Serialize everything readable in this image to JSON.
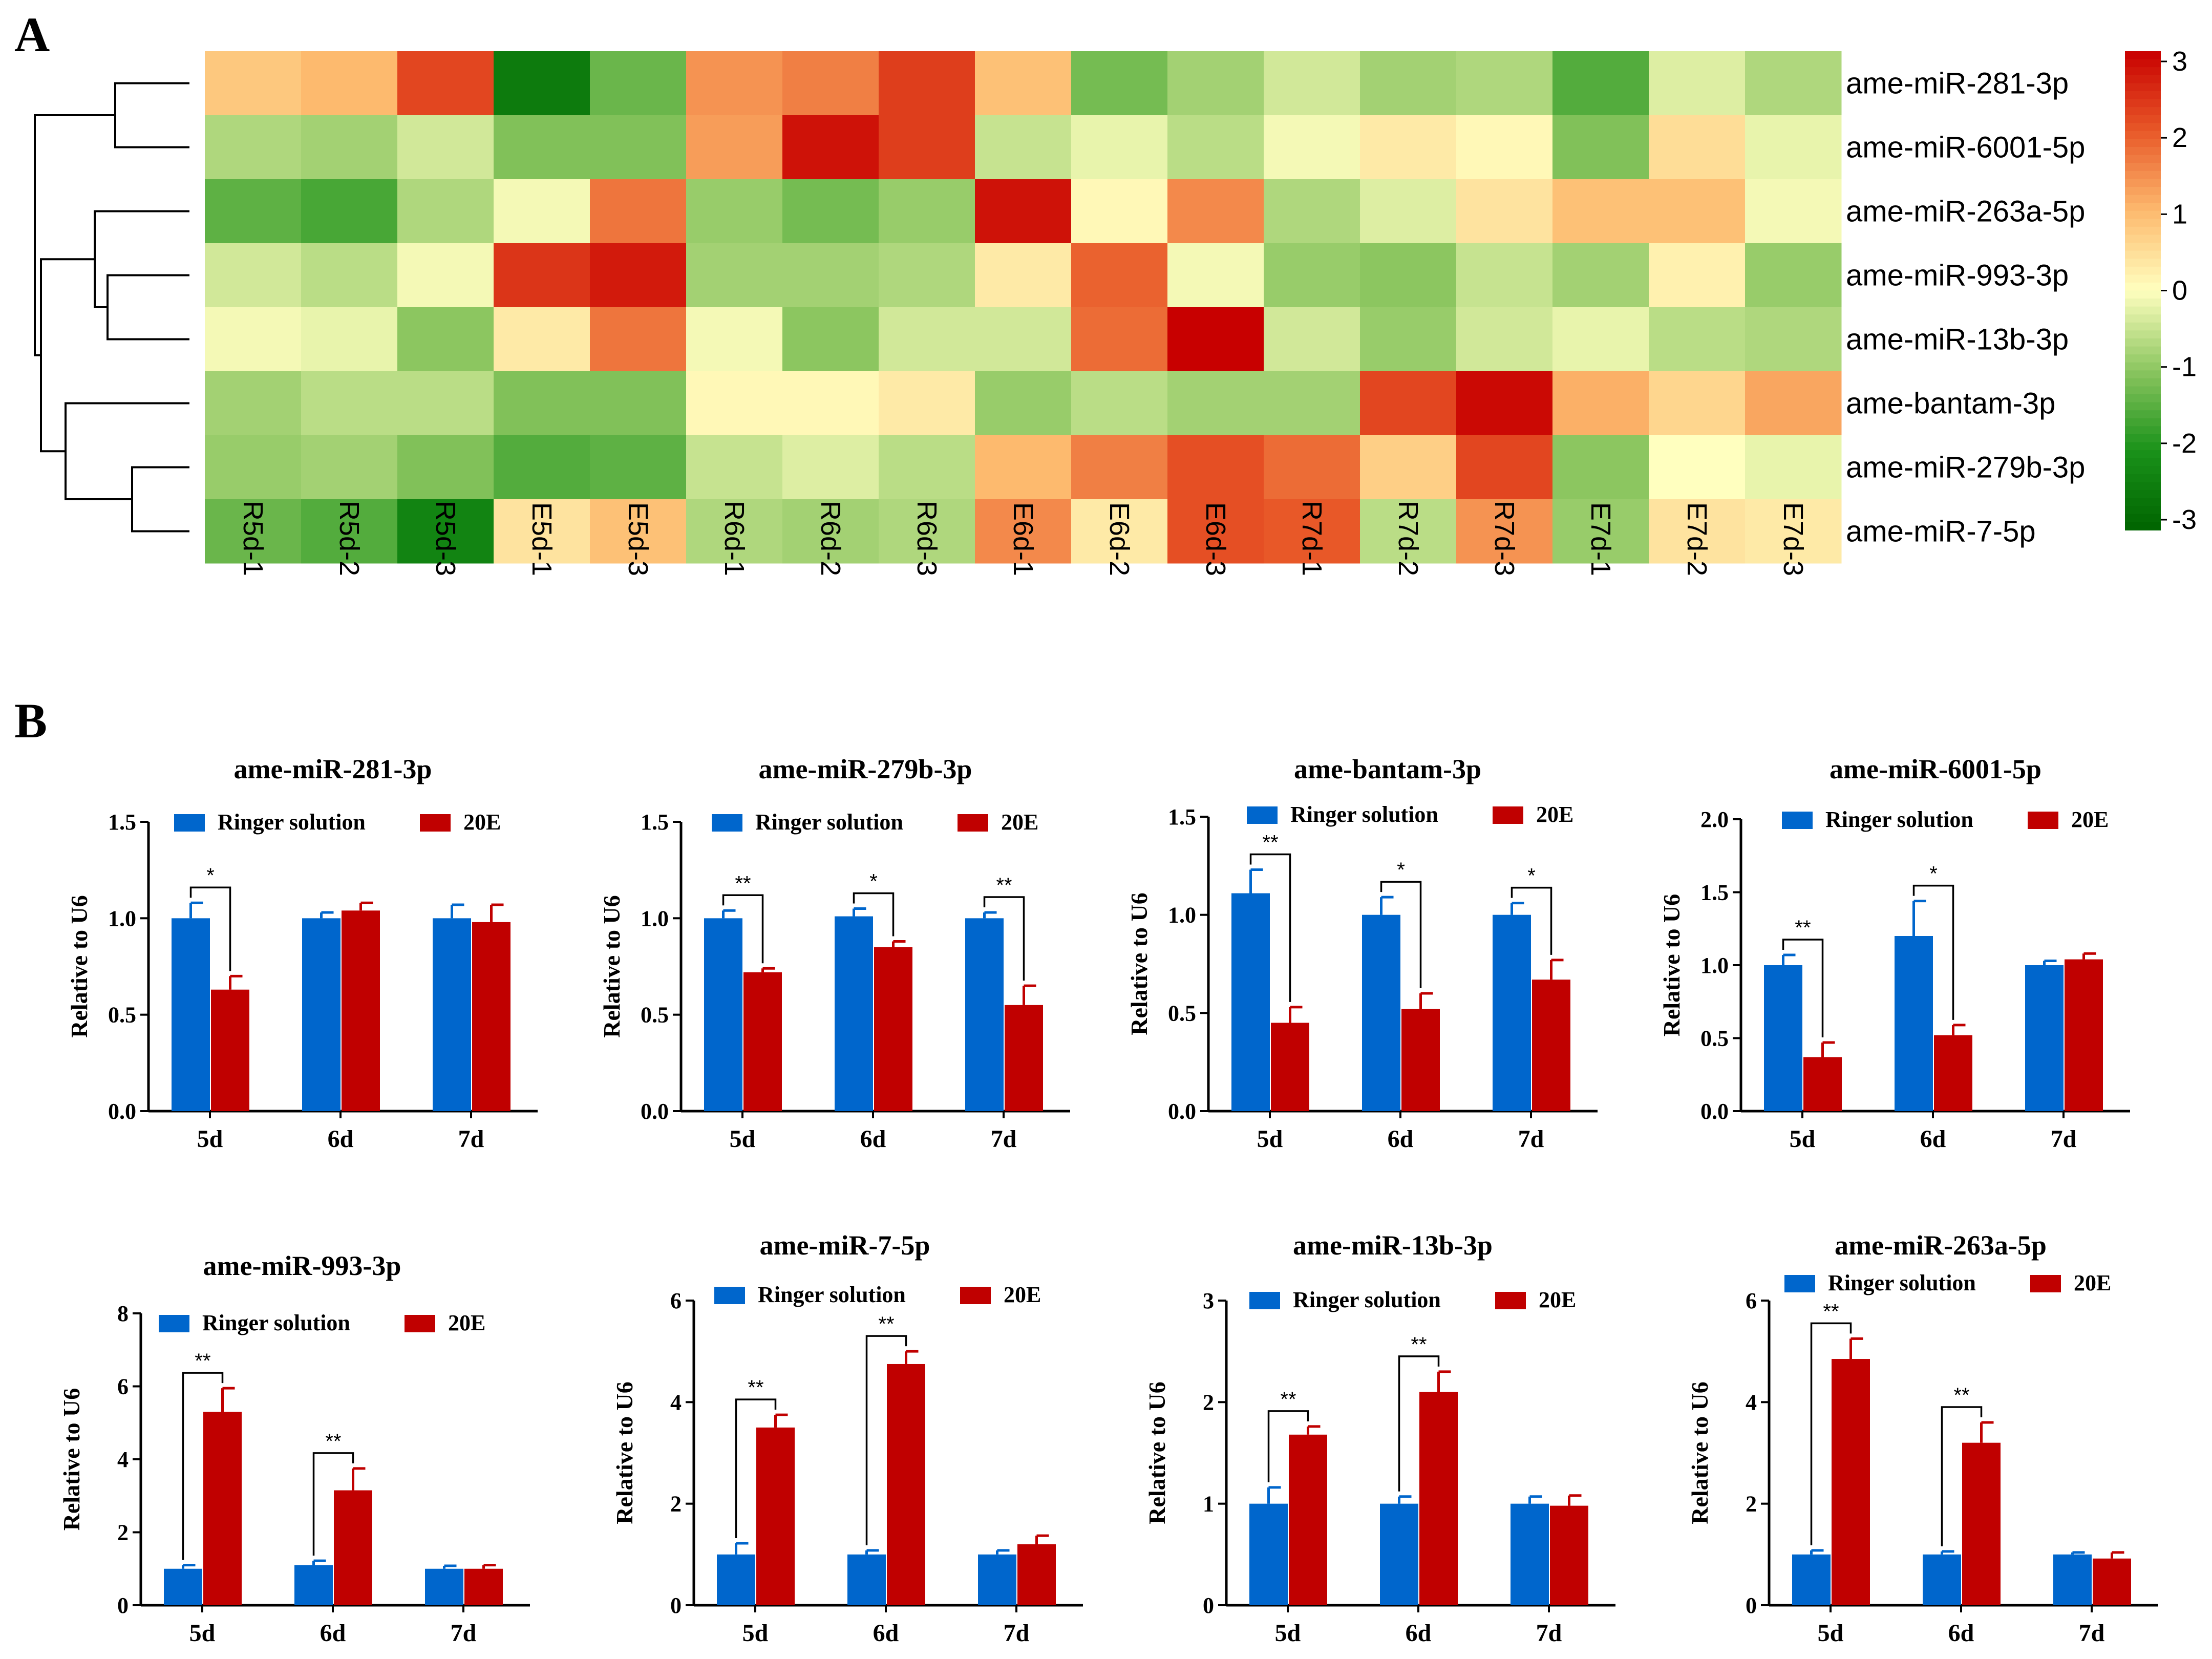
{
  "chart_data": [
    {
      "type": "heatmap",
      "panel": "A",
      "rows": [
        "ame-miR-281-3p",
        "ame-miR-6001-5p",
        "ame-miR-263a-5p",
        "ame-miR-993-3p",
        "ame-miR-13b-3p",
        "ame-bantam-3p",
        "ame-miR-279b-3p",
        "ame-miR-7-5p"
      ],
      "columns": [
        "R5d-1",
        "R5d-2",
        "R5d-3",
        "E5d-1",
        "E5d-3",
        "R6d-1",
        "R6d-2",
        "R6d-3",
        "E6d-1",
        "E6d-2",
        "E6d-3",
        "R7d-1",
        "R7d-2",
        "R7d-3",
        "E7d-1",
        "E7d-2",
        "E7d-3"
      ],
      "values": [
        [
          0.8,
          1.0,
          2.2,
          -2.5,
          -1.3,
          1.4,
          1.6,
          2.3,
          0.9,
          -1.2,
          -0.8,
          -0.4,
          -0.8,
          -0.7,
          -1.5,
          -0.3,
          -0.7
        ],
        [
          -0.7,
          -0.8,
          -0.4,
          -1.1,
          -1.1,
          1.3,
          2.8,
          2.3,
          -0.5,
          -0.2,
          -0.6,
          -0.1,
          0.3,
          0.1,
          -1.1,
          0.5,
          -0.2
        ],
        [
          -1.4,
          -1.6,
          -0.7,
          -0.1,
          1.7,
          -0.9,
          -1.2,
          -0.9,
          2.8,
          0.1,
          1.5,
          -0.7,
          -0.3,
          0.4,
          0.9,
          0.9,
          -0.1
        ],
        [
          -0.4,
          -0.6,
          -0.1,
          2.4,
          2.7,
          -0.8,
          -0.8,
          -0.7,
          0.3,
          1.9,
          -0.1,
          -0.9,
          -1.0,
          -0.5,
          -0.8,
          0.2,
          -0.9
        ],
        [
          -0.1,
          -0.2,
          -1.0,
          0.3,
          1.7,
          -0.1,
          -1.0,
          -0.4,
          -0.4,
          1.8,
          3.0,
          -0.4,
          -0.9,
          -0.4,
          -0.2,
          -0.6,
          -0.7
        ],
        [
          -0.8,
          -0.6,
          -0.6,
          -1.1,
          -1.1,
          0.1,
          0.1,
          0.3,
          -0.9,
          -0.6,
          -0.8,
          -0.8,
          2.2,
          2.9,
          1.1,
          0.6,
          1.2
        ],
        [
          -0.9,
          -0.8,
          -1.1,
          -1.5,
          -1.4,
          -0.5,
          -0.3,
          -0.6,
          1.0,
          1.6,
          2.1,
          1.8,
          0.7,
          2.2,
          -1.0,
          0.0,
          -0.2
        ],
        [
          -1.3,
          -1.5,
          -2.3,
          0.4,
          0.9,
          -0.7,
          -0.8,
          -0.7,
          1.5,
          0.3,
          2.1,
          2.0,
          -0.6,
          1.4,
          -0.9,
          0.4,
          0.3
        ]
      ],
      "color_range": [
        -3,
        3
      ],
      "colorbar_ticks": [
        "3",
        "2",
        "1",
        "0",
        "-1",
        "-2",
        "-3"
      ],
      "dendrogram": "row clustering on left"
    },
    {
      "type": "bar",
      "panel": "B",
      "title": "ame-miR-281-3p",
      "categories": [
        "5d",
        "6d",
        "7d"
      ],
      "series": [
        {
          "name": "Ringer solution",
          "values": [
            1.0,
            1.0,
            1.0
          ],
          "errors": [
            0.08,
            0.03,
            0.07
          ]
        },
        {
          "name": "20E",
          "values": [
            0.63,
            1.04,
            0.98
          ],
          "errors": [
            0.07,
            0.04,
            0.09
          ]
        }
      ],
      "ylabel": "Relative to U6",
      "ylim": [
        0,
        1.5
      ],
      "yticks": [
        "0.0",
        "0.5",
        "1.0",
        "1.5"
      ],
      "significance": [
        "*",
        "",
        ""
      ],
      "legend": [
        "Ringer solution",
        "20E"
      ]
    },
    {
      "type": "bar",
      "panel": "B",
      "title": "ame-miR-279b-3p",
      "categories": [
        "5d",
        "6d",
        "7d"
      ],
      "series": [
        {
          "name": "Ringer solution",
          "values": [
            1.0,
            1.01,
            1.0
          ],
          "errors": [
            0.04,
            0.04,
            0.03
          ]
        },
        {
          "name": "20E",
          "values": [
            0.72,
            0.85,
            0.55
          ],
          "errors": [
            0.02,
            0.03,
            0.1
          ]
        }
      ],
      "ylabel": "Relative to U6",
      "ylim": [
        0,
        1.5
      ],
      "yticks": [
        "0.0",
        "0.5",
        "1.0",
        "1.5"
      ],
      "significance": [
        "**",
        "*",
        "**"
      ],
      "legend": [
        "Ringer solution",
        "20E"
      ]
    },
    {
      "type": "bar",
      "panel": "B",
      "title": "ame-bantam-3p",
      "categories": [
        "5d",
        "6d",
        "7d"
      ],
      "series": [
        {
          "name": "Ringer solution",
          "values": [
            1.11,
            1.0,
            1.0
          ],
          "errors": [
            0.12,
            0.09,
            0.06
          ]
        },
        {
          "name": "20E",
          "values": [
            0.45,
            0.52,
            0.67
          ],
          "errors": [
            0.08,
            0.08,
            0.1
          ]
        }
      ],
      "ylabel": "Relative to U6",
      "ylim": [
        0,
        1.5
      ],
      "yticks": [
        "0.0",
        "0.5",
        "1.0",
        "1.5"
      ],
      "significance": [
        "**",
        "*",
        "*"
      ],
      "legend": [
        "Ringer solution",
        "20E"
      ]
    },
    {
      "type": "bar",
      "panel": "B",
      "title": "ame-miR-6001-5p",
      "categories": [
        "5d",
        "6d",
        "7d"
      ],
      "series": [
        {
          "name": "Ringer solution",
          "values": [
            1.0,
            1.2,
            1.0
          ],
          "errors": [
            0.07,
            0.24,
            0.03
          ]
        },
        {
          "name": "20E",
          "values": [
            0.37,
            0.52,
            1.04
          ],
          "errors": [
            0.1,
            0.07,
            0.04
          ]
        }
      ],
      "ylabel": "Relative to U6",
      "ylim": [
        0,
        2.0
      ],
      "yticks": [
        "0.0",
        "0.5",
        "1.0",
        "1.5",
        "2.0"
      ],
      "significance": [
        "**",
        "*",
        ""
      ],
      "legend": [
        "Ringer solution",
        "20E"
      ]
    },
    {
      "type": "bar",
      "panel": "B",
      "title": "ame-miR-993-3p",
      "categories": [
        "5d",
        "6d",
        "7d"
      ],
      "series": [
        {
          "name": "Ringer solution",
          "values": [
            1.0,
            1.1,
            1.0
          ],
          "errors": [
            0.1,
            0.12,
            0.08
          ]
        },
        {
          "name": "20E",
          "values": [
            5.3,
            3.15,
            1.0
          ],
          "errors": [
            0.65,
            0.6,
            0.1
          ]
        }
      ],
      "ylabel": "Relative to U6",
      "ylim": [
        0,
        8
      ],
      "yticks": [
        "0",
        "2",
        "4",
        "6",
        "8"
      ],
      "significance": [
        "**",
        "**",
        ""
      ],
      "legend": [
        "Ringer solution",
        "20E"
      ]
    },
    {
      "type": "bar",
      "panel": "B",
      "title": "ame-miR-7-5p",
      "categories": [
        "5d",
        "6d",
        "7d"
      ],
      "series": [
        {
          "name": "Ringer solution",
          "values": [
            1.0,
            1.0,
            1.0
          ],
          "errors": [
            0.22,
            0.08,
            0.08
          ]
        },
        {
          "name": "20E",
          "values": [
            3.5,
            4.75,
            1.2
          ],
          "errors": [
            0.25,
            0.25,
            0.17
          ]
        }
      ],
      "ylabel": "Relative to U6",
      "ylim": [
        0,
        6
      ],
      "yticks": [
        "0",
        "2",
        "4",
        "6"
      ],
      "significance": [
        "**",
        "**",
        ""
      ],
      "legend": [
        "Ringer solution",
        "20E"
      ]
    },
    {
      "type": "bar",
      "panel": "B",
      "title": "ame-miR-13b-3p",
      "categories": [
        "5d",
        "6d",
        "7d"
      ],
      "series": [
        {
          "name": "Ringer solution",
          "values": [
            1.0,
            1.0,
            1.0
          ],
          "errors": [
            0.16,
            0.07,
            0.07
          ]
        },
        {
          "name": "20E",
          "values": [
            1.68,
            2.1,
            0.98
          ],
          "errors": [
            0.08,
            0.2,
            0.1
          ]
        }
      ],
      "ylabel": "Relative to U6",
      "ylim": [
        0,
        3
      ],
      "yticks": [
        "0",
        "1",
        "2",
        "3"
      ],
      "significance": [
        "**",
        "**",
        ""
      ],
      "legend": [
        "Ringer solution",
        "20E"
      ]
    },
    {
      "type": "bar",
      "panel": "B",
      "title": "ame-miR-263a-5p",
      "categories": [
        "5d",
        "6d",
        "7d"
      ],
      "series": [
        {
          "name": "Ringer solution",
          "values": [
            1.0,
            1.0,
            1.0
          ],
          "errors": [
            0.08,
            0.06,
            0.04
          ]
        },
        {
          "name": "20E",
          "values": [
            4.85,
            3.2,
            0.92
          ],
          "errors": [
            0.4,
            0.4,
            0.12
          ]
        }
      ],
      "ylabel": "Relative to U6",
      "ylim": [
        0,
        6
      ],
      "yticks": [
        "0",
        "2",
        "4",
        "6"
      ],
      "significance": [
        "**",
        "**",
        ""
      ],
      "legend": [
        "Ringer solution",
        "20E"
      ]
    }
  ],
  "panels": {
    "a_label": "A",
    "b_label": "B"
  },
  "colors": {
    "ringer": "#0066cc",
    "e20": "#c00000"
  }
}
